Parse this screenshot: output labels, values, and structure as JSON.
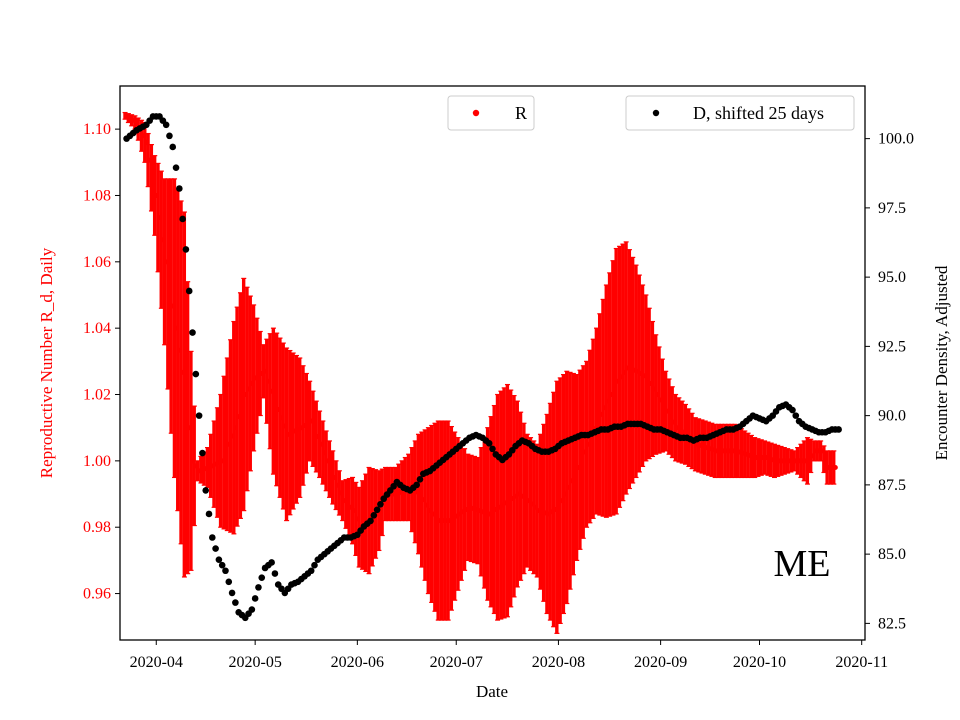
{
  "chart_data": {
    "type": "scatter",
    "xlabel": "Date",
    "x_ticks": [
      "2020-04",
      "2020-05",
      "2020-06",
      "2020-07",
      "2020-08",
      "2020-09",
      "2020-10",
      "2020-11"
    ],
    "x_tick_days": [
      0,
      30,
      61,
      91,
      122,
      153,
      183,
      214
    ],
    "xlim": [
      -11,
      215
    ],
    "left_axis": {
      "label": "Reproductive Number R_d, Daily",
      "color": "#ff0000",
      "ylim": [
        0.946,
        1.113
      ],
      "ticks": [
        "0.96",
        "0.98",
        "1.00",
        "1.02",
        "1.04",
        "1.06",
        "1.08",
        "1.10"
      ],
      "tick_values": [
        0.96,
        0.98,
        1.0,
        1.02,
        1.04,
        1.06,
        1.08,
        1.1
      ]
    },
    "right_axis": {
      "label": "Encounter Density, Adjusted",
      "color": "#000000",
      "ylim": [
        81.9,
        101.9
      ],
      "ticks": [
        "82.5",
        "85.0",
        "87.5",
        "90.0",
        "92.5",
        "95.0",
        "97.5",
        "100.0"
      ],
      "tick_values": [
        82.5,
        85.0,
        87.5,
        90.0,
        92.5,
        95.0,
        97.5,
        100.0
      ]
    },
    "series": [
      {
        "name": "R",
        "axis": "left",
        "color": "#ff0000",
        "marker": "point-with-errorbar",
        "knots_day": [
          -9,
          -6,
          -3,
          0,
          3,
          6,
          9,
          11,
          13,
          16,
          20,
          24,
          27,
          30,
          33,
          36,
          40,
          44,
          47,
          50,
          54,
          57,
          60,
          62,
          65,
          68,
          70,
          73,
          77,
          80,
          83,
          86,
          89,
          92,
          95,
          98,
          101,
          104,
          107,
          110,
          113,
          116,
          119,
          122,
          125,
          128,
          131,
          134,
          137,
          140,
          143,
          146,
          149,
          152,
          155,
          158,
          161,
          164,
          167,
          170,
          173,
          176,
          179,
          182,
          185,
          188,
          191,
          194,
          196,
          198,
          200,
          202,
          204,
          206
        ],
        "knots_value": [
          1.104,
          1.102,
          1.096,
          1.08,
          1.06,
          1.04,
          1.02,
          1.0,
          0.997,
          0.998,
          1.0,
          1.01,
          1.02,
          1.025,
          1.027,
          1.018,
          1.008,
          1.01,
          1.012,
          1.005,
          0.995,
          0.988,
          0.985,
          0.98,
          0.982,
          0.985,
          0.99,
          0.99,
          0.992,
          0.99,
          0.985,
          0.982,
          0.982,
          0.984,
          0.986,
          0.985,
          0.984,
          0.986,
          0.988,
          0.99,
          0.988,
          0.985,
          0.984,
          0.986,
          0.992,
          0.998,
          1.005,
          1.012,
          1.018,
          1.024,
          1.028,
          1.027,
          1.025,
          1.02,
          1.015,
          1.01,
          1.008,
          1.005,
          1.004,
          1.003,
          1.003,
          1.003,
          1.002,
          1.001,
          1.001,
          1.0,
          1.0,
          1.0,
          1.0,
          1.0,
          1.003,
          1.003,
          0.998,
          0.998
        ],
        "knots_err": [
          0.001,
          0.002,
          0.006,
          0.012,
          0.025,
          0.045,
          0.055,
          0.033,
          0.003,
          0.006,
          0.02,
          0.032,
          0.035,
          0.022,
          0.008,
          0.022,
          0.026,
          0.021,
          0.012,
          0.01,
          0.008,
          0.006,
          0.01,
          0.012,
          0.016,
          0.012,
          0.008,
          0.008,
          0.01,
          0.018,
          0.025,
          0.03,
          0.03,
          0.023,
          0.016,
          0.016,
          0.026,
          0.034,
          0.035,
          0.028,
          0.02,
          0.02,
          0.03,
          0.038,
          0.035,
          0.028,
          0.025,
          0.028,
          0.035,
          0.04,
          0.038,
          0.032,
          0.025,
          0.018,
          0.012,
          0.01,
          0.009,
          0.008,
          0.008,
          0.008,
          0.008,
          0.008,
          0.007,
          0.006,
          0.005,
          0.005,
          0.004,
          0.003,
          0.005,
          0.007,
          0.003,
          0.003,
          0.005,
          0.005
        ]
      },
      {
        "name": "D, shifted 25 days",
        "axis": "right",
        "color": "#000000",
        "marker": "point",
        "knots_day": [
          -9,
          -6,
          -3,
          -1,
          1,
          3,
          5,
          7,
          9,
          11,
          13,
          15,
          17,
          19,
          21,
          23,
          25,
          27,
          29,
          31,
          33,
          35,
          37,
          39,
          41,
          43,
          45,
          47,
          49,
          51,
          53,
          55,
          57,
          59,
          61,
          63,
          65,
          67,
          69,
          71,
          73,
          75,
          77,
          79,
          81,
          83,
          85,
          87,
          89,
          91,
          93,
          95,
          97,
          99,
          101,
          103,
          105,
          107,
          109,
          111,
          113,
          115,
          117,
          119,
          121,
          123,
          125,
          127,
          129,
          131,
          133,
          135,
          137,
          139,
          141,
          143,
          145,
          147,
          149,
          151,
          153,
          155,
          157,
          159,
          161,
          163,
          165,
          167,
          169,
          171,
          173,
          175,
          177,
          179,
          181,
          183,
          185,
          187,
          189,
          191,
          193,
          195,
          197,
          199,
          201,
          203,
          205,
          207
        ],
        "knots_value": [
          100.0,
          100.3,
          100.5,
          100.8,
          100.8,
          100.5,
          99.7,
          98.2,
          96.0,
          93.0,
          90.0,
          87.3,
          85.6,
          84.8,
          84.4,
          83.6,
          82.9,
          82.7,
          83.0,
          83.8,
          84.5,
          84.7,
          83.9,
          83.6,
          83.9,
          84.0,
          84.2,
          84.4,
          84.8,
          85.0,
          85.2,
          85.4,
          85.6,
          85.6,
          85.7,
          86.0,
          86.2,
          86.6,
          87.0,
          87.3,
          87.6,
          87.4,
          87.3,
          87.5,
          87.9,
          88.0,
          88.2,
          88.4,
          88.6,
          88.8,
          89.0,
          89.2,
          89.3,
          89.2,
          89.0,
          88.6,
          88.4,
          88.6,
          88.9,
          89.1,
          89.0,
          88.8,
          88.7,
          88.7,
          88.8,
          89.0,
          89.1,
          89.2,
          89.3,
          89.3,
          89.4,
          89.5,
          89.5,
          89.6,
          89.6,
          89.7,
          89.7,
          89.7,
          89.6,
          89.5,
          89.5,
          89.4,
          89.3,
          89.2,
          89.2,
          89.1,
          89.2,
          89.2,
          89.3,
          89.4,
          89.5,
          89.5,
          89.6,
          89.8,
          90.0,
          89.9,
          89.8,
          90.0,
          90.3,
          90.4,
          90.2,
          89.8,
          89.6,
          89.5,
          89.4,
          89.4,
          89.5,
          89.5
        ]
      }
    ],
    "legend": [
      {
        "label": "R",
        "placement": "top-center"
      },
      {
        "label": "D, shifted 25 days",
        "placement": "top-right"
      }
    ],
    "annotation": "ME",
    "grid": false
  }
}
